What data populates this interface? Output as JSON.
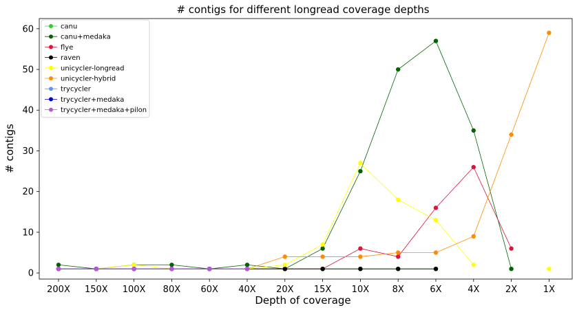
{
  "chart_data": {
    "type": "line",
    "title": "# contigs for different longread coverage depths",
    "xlabel": "Depth of coverage",
    "ylabel": "# contigs",
    "categories": [
      "200X",
      "150X",
      "100X",
      "80X",
      "60X",
      "40X",
      "20X",
      "15X",
      "10X",
      "8X",
      "6X",
      "4X",
      "2X",
      "1X"
    ],
    "yticks": [
      0,
      10,
      20,
      30,
      40,
      50,
      60
    ],
    "ylim": [
      -1.5,
      62.5
    ],
    "grid": false,
    "legend_position": "top-left",
    "series": [
      {
        "name": "canu",
        "color": "#32cd32",
        "values": [
          1,
          1,
          1,
          1,
          1,
          1,
          1,
          1,
          1,
          1,
          1,
          null,
          null,
          null
        ]
      },
      {
        "name": "canu+medaka",
        "color": "#006400",
        "values": [
          2,
          1,
          2,
          2,
          1,
          2,
          1,
          6,
          25,
          50,
          57,
          35,
          1,
          null
        ]
      },
      {
        "name": "flye",
        "color": "#dc143c",
        "values": [
          1,
          1,
          1,
          1,
          1,
          1,
          1,
          1,
          6,
          4,
          16,
          26,
          6,
          null
        ]
      },
      {
        "name": "raven",
        "color": "#000000",
        "values": [
          1,
          1,
          1,
          1,
          1,
          1,
          1,
          1,
          1,
          1,
          1,
          null,
          null,
          null
        ]
      },
      {
        "name": "unicycler-longread",
        "color": "#ffff00",
        "values": [
          1,
          1,
          2,
          1,
          1,
          1,
          2,
          7,
          27,
          18,
          13,
          2,
          null,
          1
        ]
      },
      {
        "name": "unicycler-hybrid",
        "color": "#ff8c00",
        "values": [
          1,
          1,
          1,
          1,
          1,
          1,
          4,
          4,
          4,
          5,
          5,
          9,
          34,
          59
        ]
      },
      {
        "name": "trycycler",
        "color": "#6495ed",
        "values": [
          1,
          1,
          1,
          1,
          1,
          1,
          null,
          null,
          null,
          null,
          null,
          null,
          null,
          null
        ]
      },
      {
        "name": "trycycler+medaka",
        "color": "#0000cd",
        "values": [
          1,
          1,
          1,
          1,
          1,
          1,
          null,
          null,
          null,
          null,
          null,
          null,
          null,
          null
        ]
      },
      {
        "name": "trycycler+medaka+pilon",
        "color": "#ba55d3",
        "values": [
          1,
          1,
          1,
          1,
          1,
          1,
          null,
          null,
          null,
          null,
          null,
          null,
          null,
          null
        ]
      }
    ]
  }
}
